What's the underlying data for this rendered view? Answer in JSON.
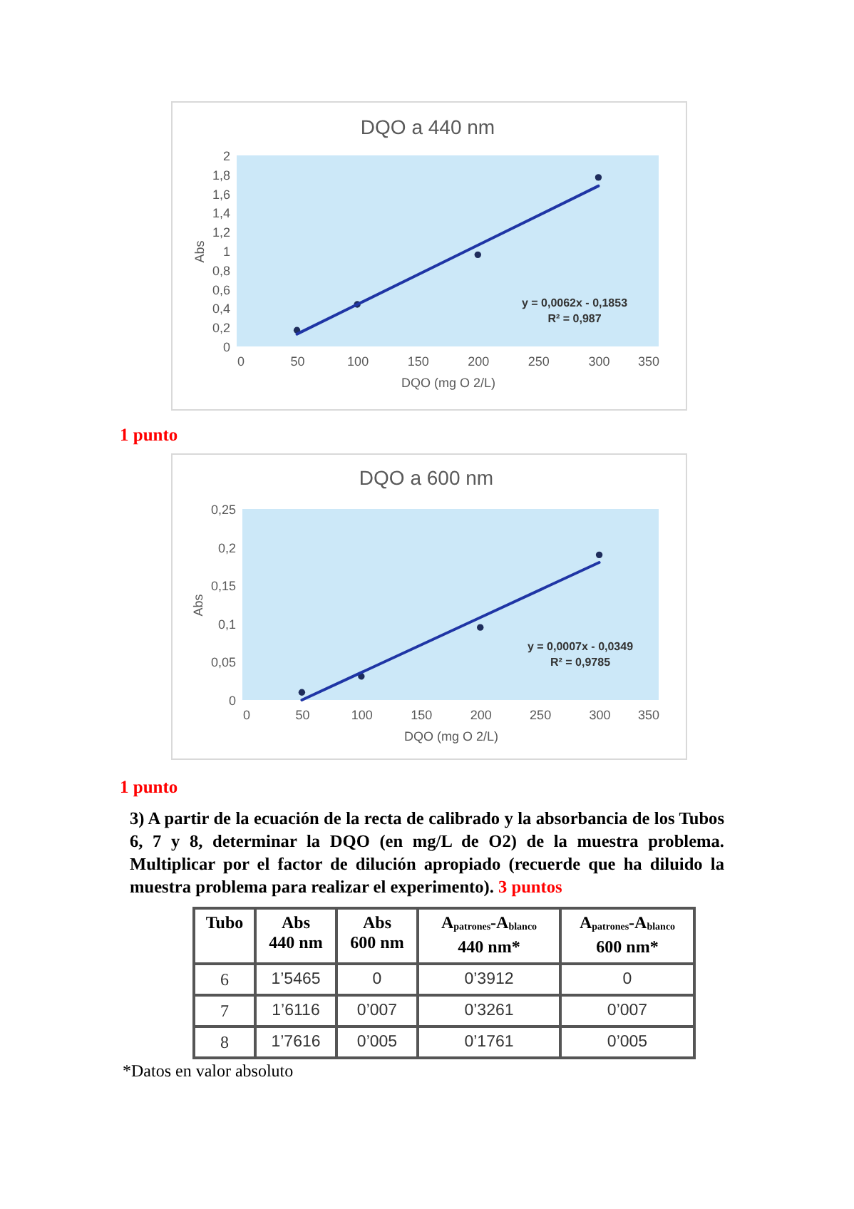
{
  "chart_data": [
    {
      "type": "scatter",
      "title": "DQO a 440 nm",
      "xlabel": "DQO (mg O 2/L)",
      "ylabel": "Abs",
      "x": [
        50,
        100,
        200,
        300
      ],
      "series": [
        {
          "type": "scatter",
          "color": "#1f2d5c",
          "values": [
            0.17,
            0.44,
            0.96,
            1.77
          ]
        },
        {
          "type": "line",
          "marker": "none",
          "color": "#1f35a5",
          "values": [
            0.13,
            0.44,
            1.06,
            1.68
          ]
        }
      ],
      "xlim": [
        0,
        350
      ],
      "xticks": [
        0,
        50,
        100,
        150,
        200,
        250,
        300,
        350
      ],
      "ylim": [
        0,
        2
      ],
      "yticks": [
        0,
        {
          "value": 0.2,
          "label": "0,2"
        },
        {
          "value": 0.4,
          "label": "0,4"
        },
        {
          "value": 0.6,
          "label": "0,6"
        },
        {
          "value": 0.8,
          "label": "0,8"
        },
        1,
        {
          "value": 1.2,
          "label": "1,2"
        },
        {
          "value": 1.4,
          "label": "1,4"
        },
        {
          "value": 1.6,
          "label": "1,6"
        },
        {
          "value": 1.8,
          "label": "1,8"
        },
        2
      ],
      "grid": false,
      "marker": "circle",
      "annotations": [
        "y = 0,0062x - 0,1853",
        "R² = 0,987",
        "1 punto"
      ]
    },
    {
      "type": "scatter",
      "title": "DQO a 600 nm",
      "xlabel": "DQO (mg O 2/L)",
      "ylabel": "Abs",
      "x": [
        50,
        100,
        200,
        300
      ],
      "series": [
        {
          "type": "scatter",
          "color": "#1f2d5c",
          "values": [
            0.01,
            0.031,
            0.095,
            0.19
          ]
        },
        {
          "type": "line",
          "marker": "none",
          "color": "#1f35a5",
          "values": [
            0,
            0.036,
            0.108,
            0.18
          ]
        }
      ],
      "xlim": [
        0,
        350
      ],
      "xticks": [
        0,
        50,
        100,
        150,
        200,
        250,
        300,
        350
      ],
      "ylim": [
        0,
        0.25
      ],
      "yticks": [
        0,
        {
          "value": 0.05,
          "label": "0,05"
        },
        {
          "value": 0.1,
          "label": "0,1"
        },
        {
          "value": 0.15,
          "label": "0,15"
        },
        {
          "value": 0.2,
          "label": "0,2"
        },
        {
          "value": 0.25,
          "label": "0,25"
        }
      ],
      "grid": false,
      "marker": "circle",
      "annotations": [
        "y = 0,0007x - 0,0349",
        "R² = 0,9785",
        "1 punto"
      ]
    },
    {
      "type": "other",
      "title": "3) A partir de la ecuación de la recta de calibrado y la absorbancia de los Tubos 6, 7 y 8, determinar la DQO (en mg/L de O2) de la muestra problema. Multiplicar por el factor de dilución apropiado (recuerde que ha diluido la muestra problema para realizar el experimento).",
      "subtitle": "3 puntos",
      "categories": [
        "Tubo",
        "Abs\n440 nm",
        "Abs\n600 nm",
        "A$_{patrones}$-A$_{blanco}$\n440 nm*",
        "A$_{patrones}$-A$_{blanco}$\n600 nm*"
      ],
      "cell_labels": [
        [
          "6",
          "1’5465",
          "0",
          "0’3912",
          "0"
        ],
        [
          "7",
          "1’6116",
          "0’007",
          "0’3261",
          "0’007"
        ],
        [
          "8",
          "1’7616",
          "0’005",
          "0’1761",
          "0’005"
        ]
      ],
      "annotations": [
        "*Datos en valor absoluto"
      ]
    }
  ]
}
